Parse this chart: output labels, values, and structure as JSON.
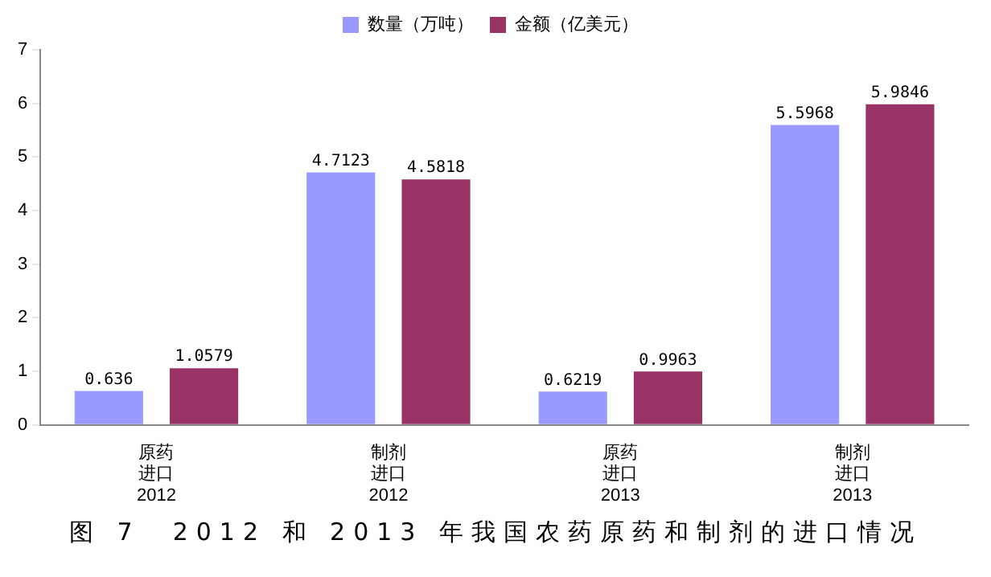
{
  "chart_data": {
    "type": "bar",
    "title": "图 7　2012 和 2013 年我国农药原药和制剂的进口情况",
    "categories": [
      "原药进口2012",
      "制剂进口2012",
      "原药进口2013",
      "制剂进口2013"
    ],
    "series": [
      {
        "name": "数量（万吨）",
        "color": "#9999ff",
        "values": [
          0.636,
          4.7123,
          0.6219,
          5.5968
        ]
      },
      {
        "name": "金额（亿美元）",
        "color": "#993366",
        "values": [
          1.0579,
          4.5818,
          0.9963,
          5.9846
        ]
      }
    ],
    "ylim": [
      0,
      7
    ],
    "yticks": [
      0,
      1,
      2,
      3,
      4,
      5,
      6,
      7
    ],
    "grid": false,
    "legend": "top",
    "data_labels": true
  }
}
